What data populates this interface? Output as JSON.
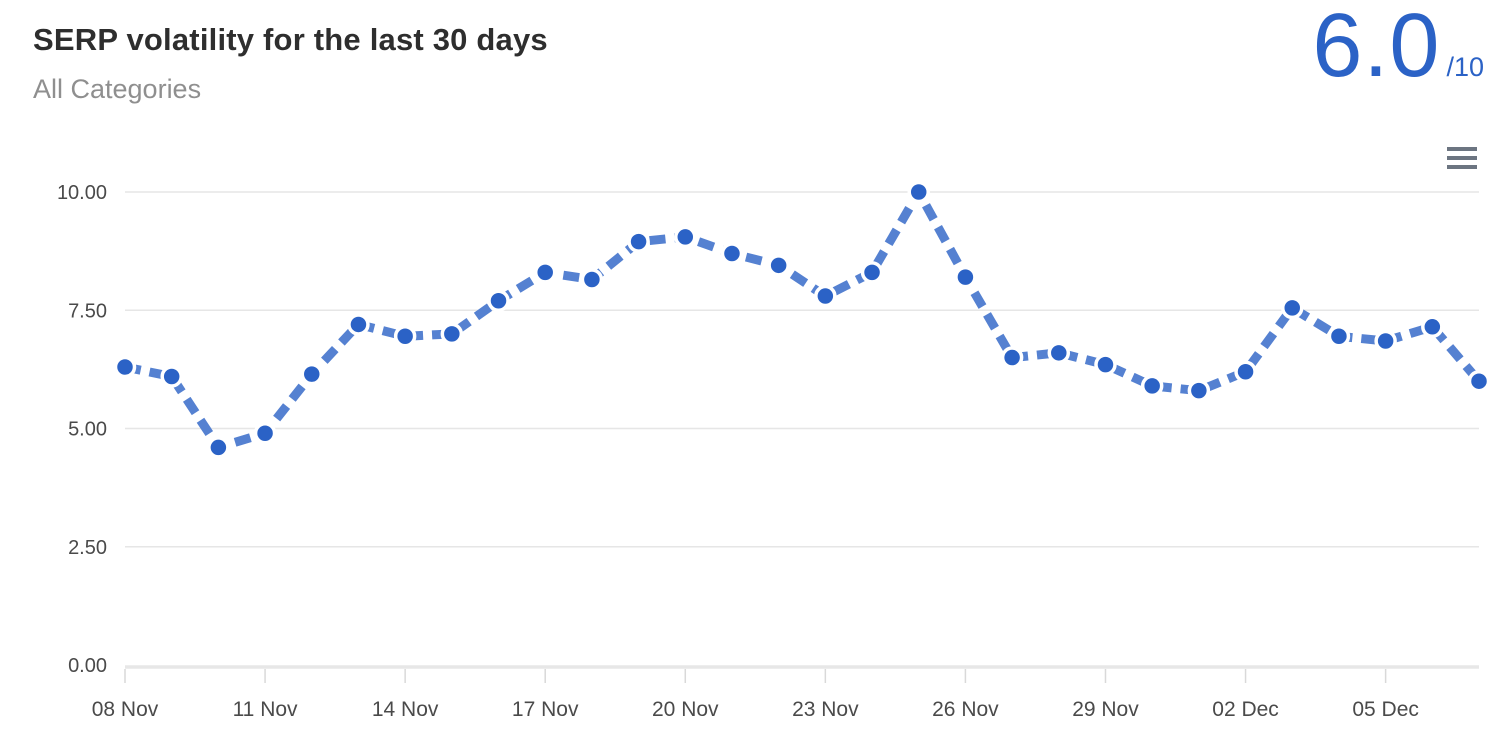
{
  "header": {
    "title": "SERP volatility for the last 30 days",
    "subtitle": "All Categories"
  },
  "score": {
    "value": "6.0",
    "denominator": "/10"
  },
  "icons": {
    "context_menu": "hamburger-icon"
  },
  "colors": {
    "accent_blue": "#2b62c6",
    "line_blue": "#5581d1",
    "marker_blue": "#2b62c6",
    "grid": "#e6e6e6",
    "axis_line": "#e7e7e7",
    "tick": "#d9d9d9",
    "axis_label": "#4a4a4a",
    "title_text": "#2e2e2e",
    "subtitle_text": "#8f8f8f",
    "menu_icon": "#6c7581"
  },
  "chart_data": {
    "type": "line",
    "title": "SERP volatility for the last 30 days",
    "subtitle": "All Categories",
    "line_style": "dashed",
    "marker": "circle",
    "grid": true,
    "legend": false,
    "xlabel": "",
    "ylabel": "",
    "ylim": [
      0,
      10
    ],
    "yticks": {
      "values": [
        10,
        7.5,
        5,
        2.5,
        0
      ],
      "labels": [
        "10.00",
        "7.50",
        "5.00",
        "2.50",
        "0.00"
      ]
    },
    "xtick_every": 3,
    "xtick_labels": [
      "08 Nov",
      "11 Nov",
      "14 Nov",
      "17 Nov",
      "20 Nov",
      "23 Nov",
      "26 Nov",
      "29 Nov",
      "02 Dec",
      "05 Dec"
    ],
    "categories": [
      "08 Nov",
      "09 Nov",
      "10 Nov",
      "11 Nov",
      "12 Nov",
      "13 Nov",
      "14 Nov",
      "15 Nov",
      "16 Nov",
      "17 Nov",
      "18 Nov",
      "19 Nov",
      "20 Nov",
      "21 Nov",
      "22 Nov",
      "23 Nov",
      "24 Nov",
      "25 Nov",
      "26 Nov",
      "27 Nov",
      "28 Nov",
      "29 Nov",
      "30 Nov",
      "01 Dec",
      "02 Dec",
      "03 Dec",
      "04 Dec",
      "05 Dec",
      "06 Dec",
      "07 Dec"
    ],
    "values": [
      6.3,
      6.1,
      4.6,
      4.9,
      6.15,
      7.2,
      6.95,
      7.0,
      7.7,
      8.3,
      8.15,
      8.95,
      9.05,
      8.7,
      8.45,
      7.8,
      8.3,
      10.0,
      8.2,
      6.5,
      6.6,
      6.35,
      5.9,
      5.8,
      6.2,
      7.55,
      6.95,
      6.85,
      7.15,
      6.0
    ]
  }
}
